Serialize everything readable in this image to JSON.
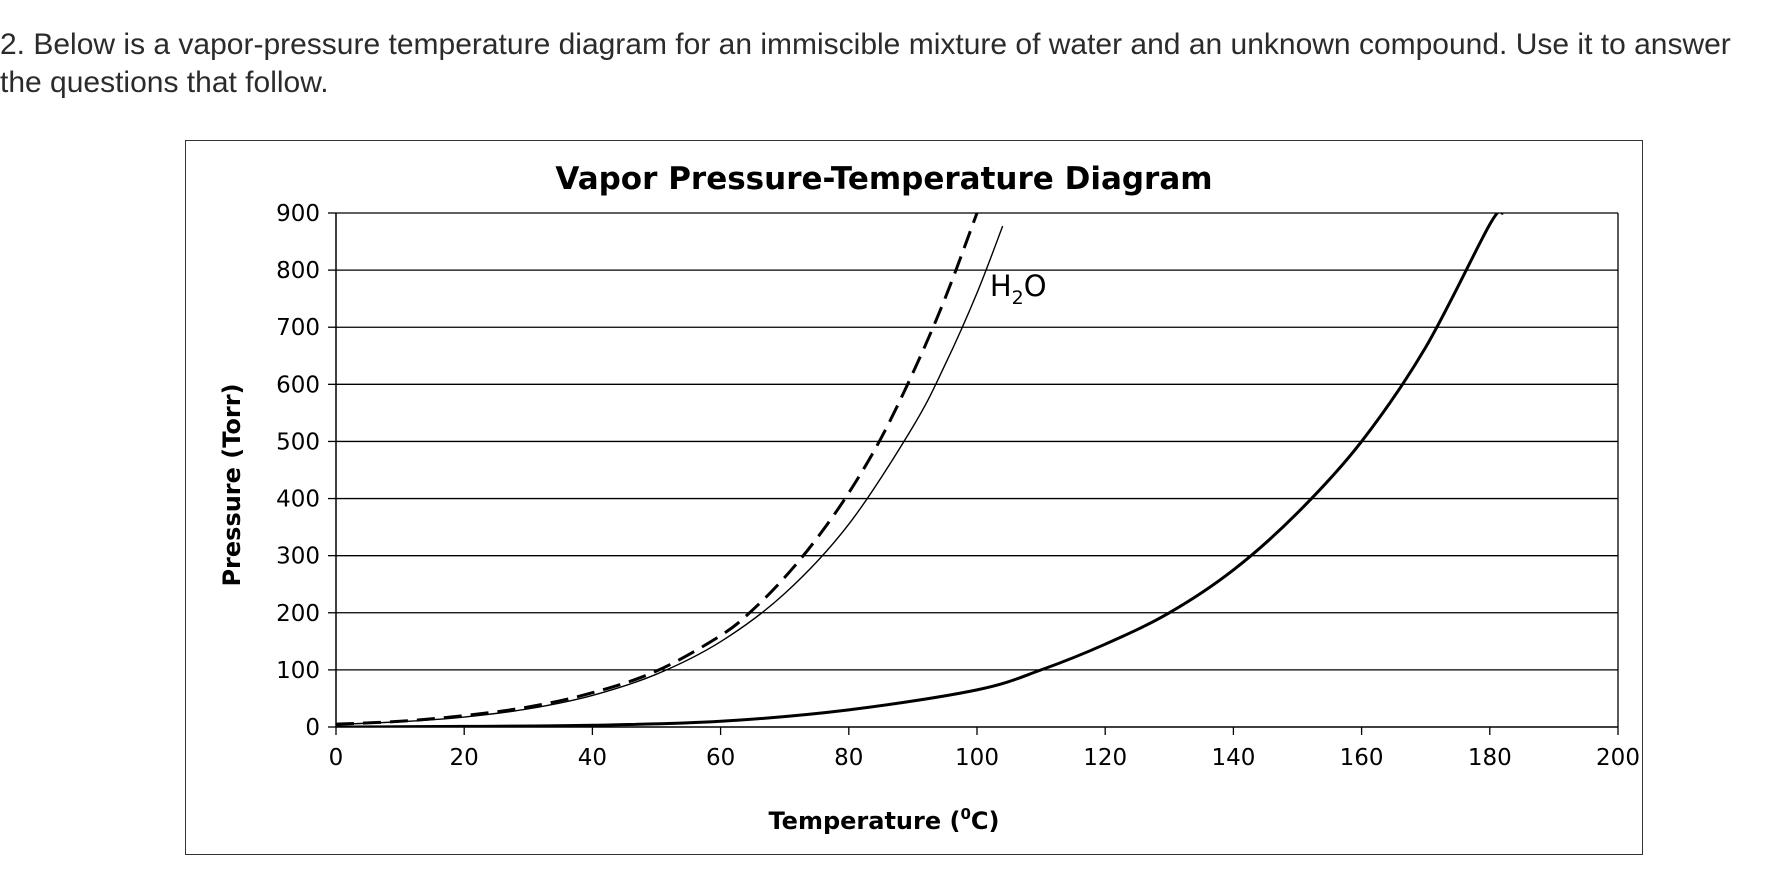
{
  "question": {
    "text": "2. Below is a vapor-pressure temperature diagram for an immiscible mixture of water and an unknown compound. Use it to answer the questions that follow."
  },
  "chart_data": {
    "type": "line",
    "title": "Vapor Pressure-Temperature Diagram",
    "xlabel_main": "Temperature (",
    "xlabel_sup": "0",
    "xlabel_end": "C)",
    "ylabel": "Pressure (Torr)",
    "xlim": [
      0,
      200
    ],
    "ylim": [
      0,
      900
    ],
    "xticks": [
      0,
      20,
      40,
      60,
      80,
      100,
      120,
      140,
      160,
      180,
      200
    ],
    "yticks": [
      0,
      100,
      200,
      300,
      400,
      500,
      600,
      700,
      800,
      900
    ],
    "grid": "horizontal",
    "annotation": {
      "main": "H",
      "sub": "2",
      "end": "O",
      "x": 102,
      "y": 755
    },
    "series": [
      {
        "style": "dashed",
        "color": "#000000",
        "x": [
          0,
          10,
          20,
          30,
          40,
          50,
          60,
          65,
          70,
          75,
          80,
          85,
          90,
          95,
          100
        ],
        "y": [
          5,
          10,
          20,
          35,
          60,
          98,
          160,
          205,
          262,
          330,
          410,
          505,
          620,
          750,
          900
        ]
      },
      {
        "style": "thin",
        "color": "#000000",
        "x": [
          0,
          10,
          20,
          30,
          40,
          50,
          60,
          70,
          80,
          90,
          95,
          100,
          104
        ],
        "y": [
          4.6,
          9.2,
          17.5,
          31.8,
          55.3,
          92.5,
          149.4,
          233.7,
          355.1,
          525.8,
          633.9,
          760,
          877
        ]
      },
      {
        "style": "solid",
        "color": "#000000",
        "x": [
          0,
          20,
          40,
          60,
          80,
          100,
          110,
          120,
          130,
          140,
          150,
          160,
          170,
          180,
          182
        ],
        "y": [
          0,
          1,
          3,
          10,
          30,
          65,
          100,
          145,
          200,
          275,
          375,
          500,
          665,
          880,
          900
        ]
      }
    ]
  }
}
